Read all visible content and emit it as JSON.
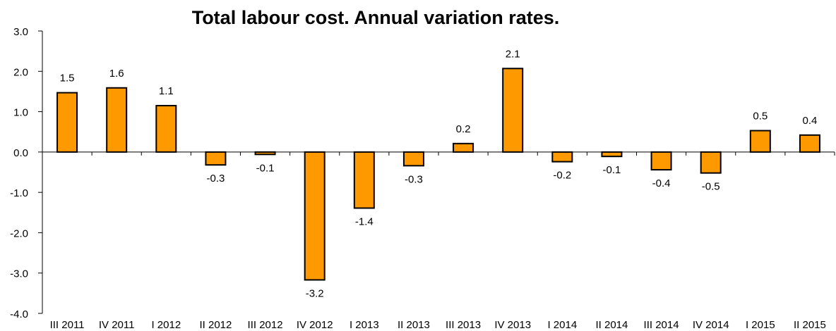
{
  "chart_data": {
    "type": "bar",
    "title": "Total labour cost. Annual variation rates.",
    "xlabel": "",
    "ylabel": "",
    "categories": [
      "III 2011",
      "IV 2011",
      "I 2012",
      "II 2012",
      "III 2012",
      "IV 2012",
      "I 2013",
      "II 2013",
      "III 2013",
      "IV 2013",
      "I 2014",
      "II 2014",
      "III 2014",
      "IV 2014",
      "I 2015",
      "II 2015"
    ],
    "values": [
      1.47,
      1.59,
      1.15,
      -0.32,
      -0.06,
      -3.17,
      -1.39,
      -0.34,
      0.21,
      2.07,
      -0.24,
      -0.11,
      -0.44,
      -0.52,
      0.53,
      0.42
    ],
    "data_labels": [
      "1.5",
      "1.6",
      "1.1",
      "-0.3",
      "-0.1",
      "-3.2",
      "-1.4",
      "-0.3",
      "0.2",
      "2.1",
      "-0.2",
      "-0.1",
      "-0.4",
      "-0.5",
      "0.5",
      "0.4"
    ],
    "ylim": [
      -4.0,
      3.0
    ],
    "yticks": [
      "3.0",
      "2.0",
      "1.0",
      "0.0",
      "-1.0",
      "-2.0",
      "-3.0",
      "-4.0"
    ],
    "grid": false,
    "legend": "none",
    "bar_color": "#FF9900",
    "bar_edge_color": "#000000"
  }
}
